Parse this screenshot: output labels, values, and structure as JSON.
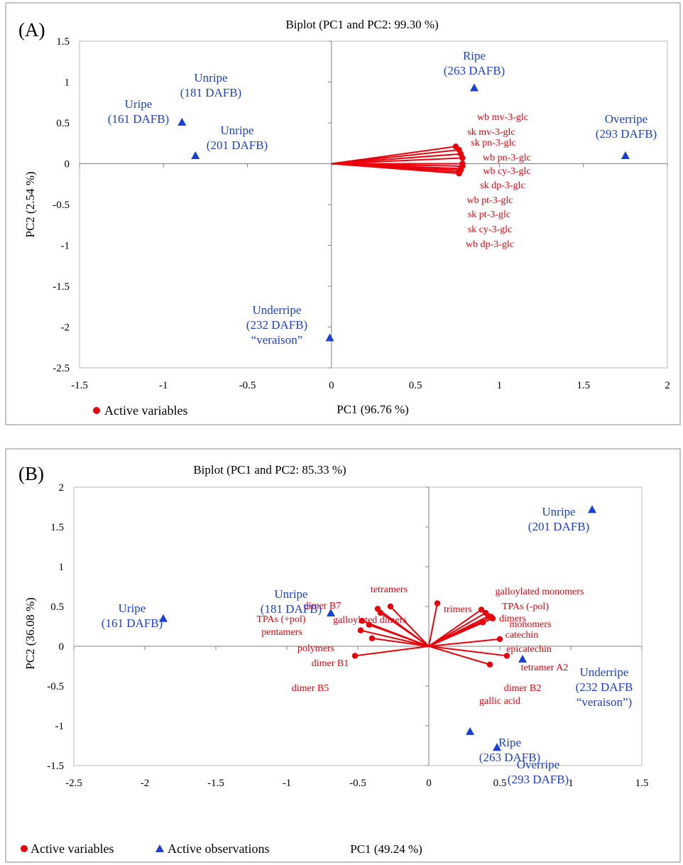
{
  "colors": {
    "variables": "#e8000b",
    "observations": "#1a3fd4"
  },
  "chart_data": [
    {
      "panel": "(A)",
      "type": "scatter",
      "title": "Biplot (PC1 and PC2: 99.30 %)",
      "xlabel": "PC1 (96.76 %)",
      "ylabel": "PC2 (2.54 %)",
      "xlim": [
        -1.5,
        2
      ],
      "ylim": [
        -2.5,
        1.5
      ],
      "xticks": [
        -1.5,
        -1,
        -0.5,
        0,
        0.5,
        1,
        1.5,
        2
      ],
      "yticks": [
        -2.5,
        -2,
        -1.5,
        -1,
        -0.5,
        0,
        0.5,
        1,
        1.5
      ],
      "xtick_labels": [
        "-1.5",
        "-1",
        "-0.5",
        "0",
        "0.5",
        "1",
        "1.5",
        "2"
      ],
      "ytick_labels": [
        "-2.5",
        "-2",
        "-1.5",
        "-1",
        "-0.5",
        "0",
        "0.5",
        "1",
        "1.5"
      ],
      "legend": [
        "Active variables"
      ],
      "variables": [
        {
          "name": "wb mv-3-glc",
          "x": 0.74,
          "y": 0.21
        },
        {
          "name": "sk mv-3-glc",
          "x": 0.76,
          "y": 0.17
        },
        {
          "name": "sk pn-3-glc",
          "x": 0.77,
          "y": 0.12
        },
        {
          "name": "wb pn-3-glc",
          "x": 0.78,
          "y": 0.07
        },
        {
          "name": "wb cy-3-glc",
          "x": 0.78,
          "y": 0.0
        },
        {
          "name": "sk dp-3-glc",
          "x": 0.78,
          "y": -0.03
        },
        {
          "name": "wb pt-3-glc",
          "x": 0.77,
          "y": -0.06
        },
        {
          "name": "sk pt-3-glc",
          "x": 0.77,
          "y": -0.08
        },
        {
          "name": "sk cy-3-glc",
          "x": 0.76,
          "y": -0.1
        },
        {
          "name": "wb dp-3-glc",
          "x": 0.76,
          "y": -0.12
        }
      ],
      "observations": [
        {
          "lines": [
            "Uripe",
            "(161 DAFB)"
          ],
          "x": -0.89,
          "y": 0.51
        },
        {
          "lines": [
            "Unripe",
            "(181 DAFB)"
          ],
          "x": -0.89,
          "y": 0.51,
          "label_only": true
        },
        {
          "lines": [
            "Unripe",
            "(201 DAFB)"
          ],
          "x": -0.81,
          "y": 0.1
        },
        {
          "lines": [
            "Ripe",
            "(263 DAFB)"
          ],
          "x": 0.85,
          "y": 0.93
        },
        {
          "lines": [
            "Overripe",
            "(293 DAFB)"
          ],
          "x": 1.75,
          "y": 0.1
        },
        {
          "lines": [
            "Underripe",
            "(232 DAFB)",
            "“veraison”"
          ],
          "x": -0.01,
          "y": -2.13
        }
      ]
    },
    {
      "panel": "(B)",
      "type": "scatter",
      "title": "Biplot (PC1 and PC2: 85.33 %)",
      "xlabel": "PC1 (49.24 %)",
      "ylabel": "PC2 (36.08 %)",
      "xlim": [
        -2.5,
        1.5
      ],
      "ylim": [
        -1.5,
        2
      ],
      "xticks": [
        -2.5,
        -2,
        -1.5,
        -1,
        -0.5,
        0,
        0.5,
        1,
        1.5
      ],
      "yticks": [
        -1.5,
        -1,
        -0.5,
        0,
        0.5,
        1,
        1.5,
        2
      ],
      "xtick_labels": [
        "-2.5",
        "-2",
        "-1.5",
        "-1",
        "-0.5",
        "0",
        "0.5",
        "1",
        "1.5"
      ],
      "ytick_labels": [
        "-1.5",
        "-1",
        "-0.5",
        "0",
        "0.5",
        "1",
        "1.5",
        "2"
      ],
      "legend": [
        "Active variables",
        "Active observations"
      ],
      "variables": [
        {
          "name": "tetramers",
          "x": -0.36,
          "y": 0.47
        },
        {
          "name": "dimer B7",
          "x": -0.34,
          "y": 0.42
        },
        {
          "name": "galloylated dimers",
          "x": -0.27,
          "y": 0.5
        },
        {
          "name": "TPAs (+pol)",
          "x": -0.47,
          "y": 0.32
        },
        {
          "name": "pentamers",
          "x": -0.42,
          "y": 0.27
        },
        {
          "name": "polymers",
          "x": -0.48,
          "y": 0.2
        },
        {
          "name": "dimer B1",
          "x": -0.4,
          "y": 0.1
        },
        {
          "name": "dimer B5",
          "x": -0.52,
          "y": -0.12
        },
        {
          "name": "trimers",
          "x": 0.06,
          "y": 0.54
        },
        {
          "name": "galloylated monomers",
          "x": 0.37,
          "y": 0.46
        },
        {
          "name": "TPAs (-pol)",
          "x": 0.4,
          "y": 0.42
        },
        {
          "name": "dimers",
          "x": 0.44,
          "y": 0.37
        },
        {
          "name": "monomers",
          "x": 0.45,
          "y": 0.35
        },
        {
          "name": "catechin",
          "x": 0.42,
          "y": 0.38
        },
        {
          "name": "epicatechin",
          "x": 0.38,
          "y": 0.3
        },
        {
          "name": "tetramer A2",
          "x": 0.5,
          "y": 0.09
        },
        {
          "name": "dimer B2",
          "x": 0.55,
          "y": -0.12
        },
        {
          "name": "gallic acid",
          "x": 0.43,
          "y": -0.23
        }
      ],
      "observations": [
        {
          "lines": [
            "Uripe",
            "(161 DAFB)"
          ],
          "x": -1.87,
          "y": 0.35
        },
        {
          "lines": [
            "Unripe",
            "(181 DAFB)"
          ],
          "x": -0.69,
          "y": 0.42
        },
        {
          "lines": [
            "Unripe",
            "(201 DAFB)"
          ],
          "x": 1.15,
          "y": 1.72
        },
        {
          "lines": [
            "Underripe",
            "(232 DAFB",
            "“veraison”)"
          ],
          "x": 0.66,
          "y": -0.16
        },
        {
          "lines": [
            "Ripe",
            "(263 DAFB)"
          ],
          "x": 0.29,
          "y": -1.07
        },
        {
          "lines": [
            "Overripe",
            "(293 DAFB)"
          ],
          "x": 0.48,
          "y": -1.27
        }
      ]
    }
  ]
}
